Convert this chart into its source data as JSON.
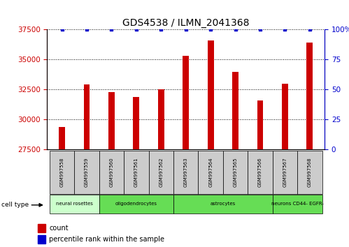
{
  "title": "GDS4538 / ILMN_2041368",
  "samples": [
    "GSM997558",
    "GSM997559",
    "GSM997560",
    "GSM997561",
    "GSM997562",
    "GSM997563",
    "GSM997564",
    "GSM997565",
    "GSM997566",
    "GSM997567",
    "GSM997568"
  ],
  "counts": [
    29400,
    32900,
    32300,
    31900,
    32500,
    35300,
    36600,
    34000,
    31600,
    33000,
    36400
  ],
  "percentile_ranks": [
    100,
    100,
    100,
    100,
    100,
    100,
    100,
    100,
    100,
    100,
    100
  ],
  "bar_color": "#cc0000",
  "dot_color": "#0000cc",
  "ylim_left": [
    27500,
    37500
  ],
  "ylim_right": [
    0,
    100
  ],
  "yticks_left": [
    27500,
    30000,
    32500,
    35000,
    37500
  ],
  "yticks_right": [
    0,
    25,
    50,
    75,
    100
  ],
  "bar_width": 0.25,
  "xlabel_color": "#cc0000",
  "ylabel_right_color": "#0000cc",
  "tick_bg_color": "#cccccc",
  "legend_count_color": "#cc0000",
  "legend_pct_color": "#0000cc",
  "group_labels": [
    "neural rosettes",
    "oligodendrocytes",
    "astrocytes",
    "neurons CD44- EGFR-"
  ],
  "group_ranges": [
    [
      0,
      2
    ],
    [
      2,
      5
    ],
    [
      5,
      9
    ],
    [
      9,
      11
    ]
  ],
  "group_colors": [
    "#ccffcc",
    "#66dd55",
    "#66dd55",
    "#66dd55"
  ]
}
